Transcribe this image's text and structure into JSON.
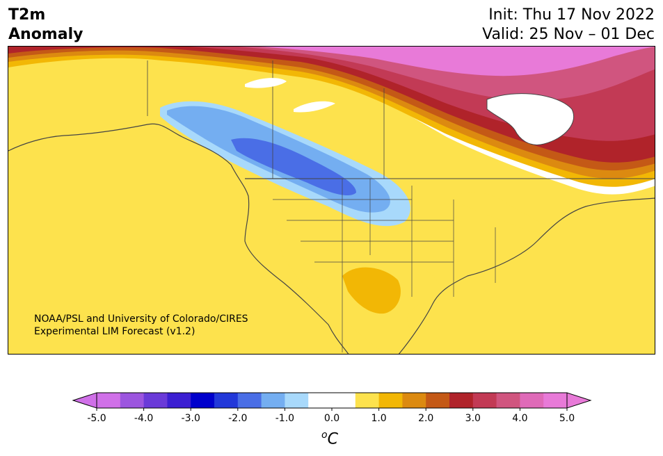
{
  "header": {
    "title_line1": "T2m",
    "title_line2": "Anomaly",
    "init": "Init: Thu 17 Nov 2022",
    "valid": "Valid: 25 Nov – 01 Dec"
  },
  "credit": {
    "line1": "NOAA/PSL and University of Colorado/CIRES",
    "line2": "Experimental LIM Forecast (v1.2)"
  },
  "colorbar": {
    "unit_sup": "o",
    "unit": "C",
    "tick_labels": [
      "-5.0",
      "-4.0",
      "-3.0",
      "-2.0",
      "-1.0",
      "0.0",
      "1.0",
      "2.0",
      "3.0",
      "4.0",
      "5.0"
    ],
    "colors": [
      "#d070e8",
      "#9c55df",
      "#6a3ad8",
      "#3c1fd2",
      "#0000cc",
      "#2238d9",
      "#4a6ee6",
      "#74aef1",
      "#a8d9fb",
      "#ffffff",
      "#ffffff",
      "#fde24d",
      "#f2b705",
      "#dc8a10",
      "#c45916",
      "#b0232a",
      "#c23a55",
      "#d0557f",
      "#df6ab8",
      "#e87ad8"
    ]
  },
  "map": {
    "region": "North America",
    "variable": "2 m temperature anomaly"
  }
}
